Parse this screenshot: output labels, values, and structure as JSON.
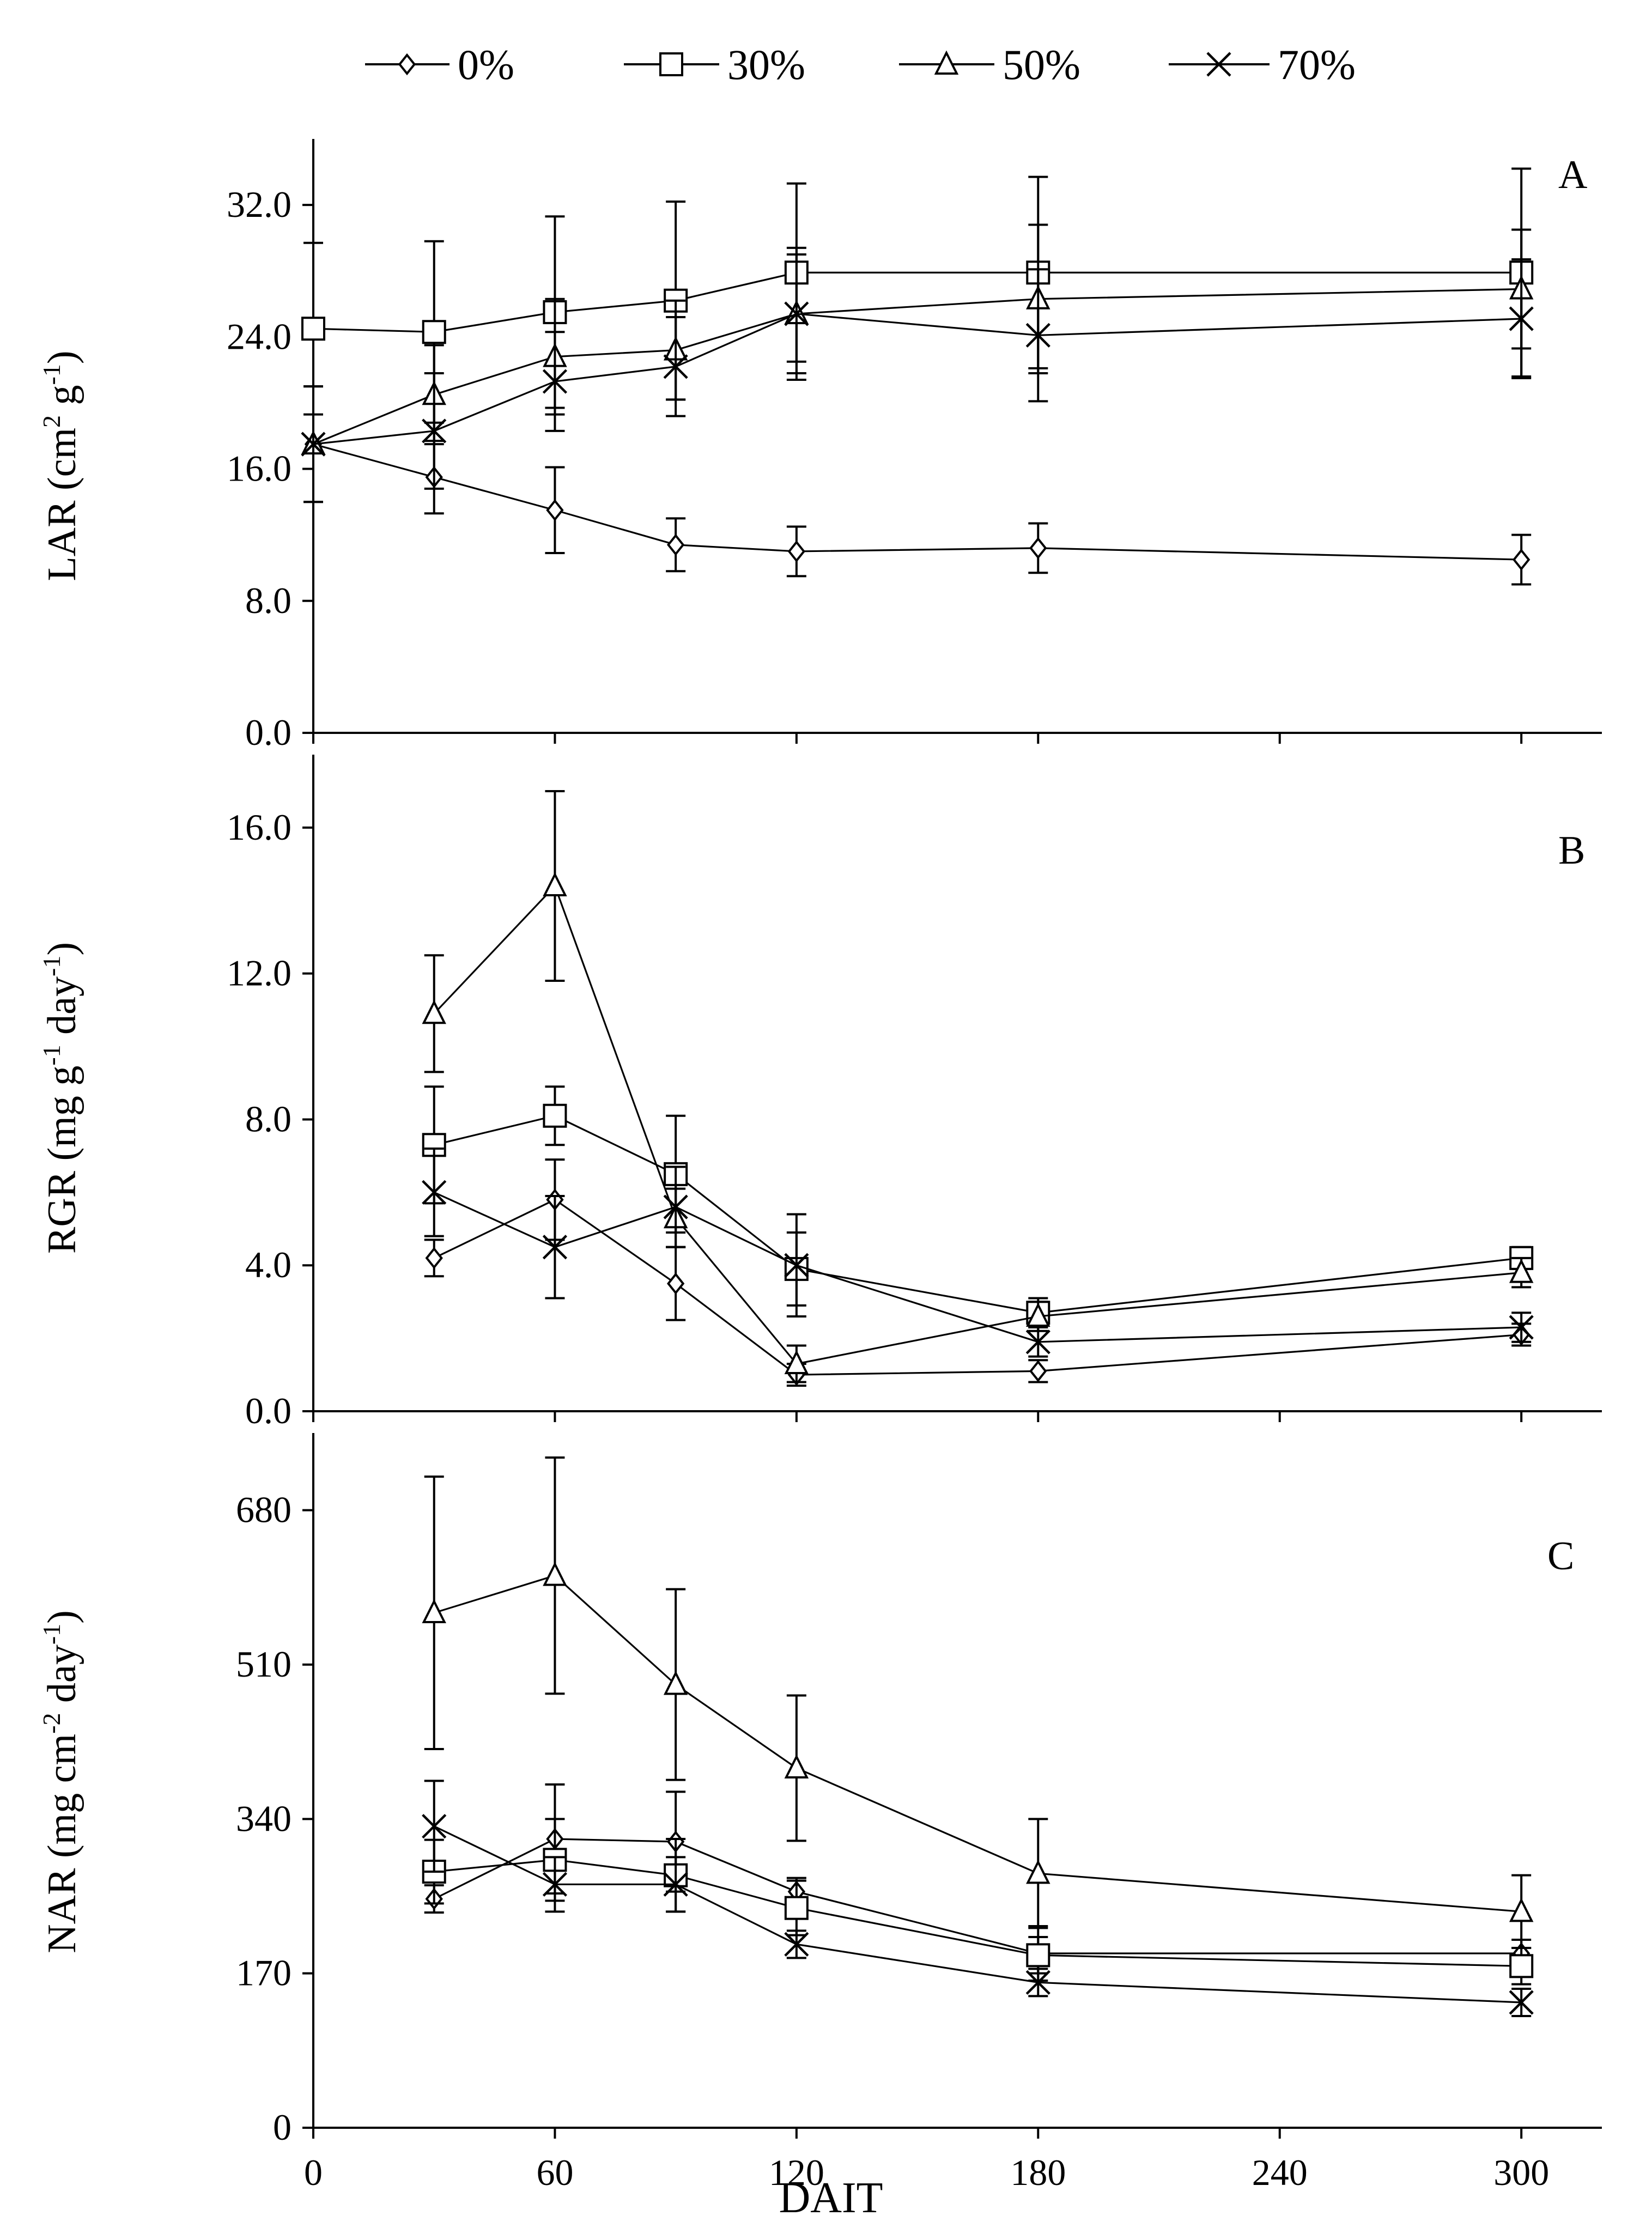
{
  "legend": {
    "entries": [
      {
        "label": "0%",
        "marker": "diamond"
      },
      {
        "label": "30%",
        "marker": "square"
      },
      {
        "label": "50%",
        "marker": "triangle"
      },
      {
        "label": "70%",
        "marker": "cross"
      }
    ],
    "placement": "top-center"
  },
  "chart_data": [
    {
      "type": "line",
      "panel": "A",
      "ylabel": "LAR (cm² g⁻¹)",
      "ylabel_parts": {
        "a": "LAR (cm",
        "b": "2",
        "c": " g",
        "d": "-1",
        "e": ")"
      },
      "ylim": [
        0,
        36
      ],
      "yticks": [
        0,
        8,
        16,
        24,
        32
      ],
      "ytick_labels": [
        "0.0",
        "8.0",
        "16.0",
        "24.0",
        "32.0"
      ],
      "x": [
        0,
        30,
        60,
        90,
        120,
        180,
        300
      ],
      "series": [
        {
          "name": "0%",
          "marker": "diamond",
          "values": [
            17.5,
            15.5,
            13.5,
            11.4,
            11.0,
            11.2,
            10.5
          ],
          "errors": [
            3.5,
            2.2,
            2.6,
            1.6,
            1.5,
            1.5,
            1.5
          ]
        },
        {
          "name": "30%",
          "marker": "square",
          "values": [
            24.5,
            24.3,
            25.5,
            26.2,
            27.9,
            27.9,
            27.9
          ],
          "errors": [
            5.2,
            5.5,
            5.8,
            6.0,
            5.4,
            5.8,
            6.3
          ]
        },
        {
          "name": "50%",
          "marker": "triangle",
          "values": [
            17.5,
            20.5,
            22.8,
            23.2,
            25.4,
            26.3,
            26.9
          ],
          "errors": [
            3.5,
            3.0,
            3.5,
            3.0,
            4.0,
            4.5,
            3.6
          ]
        },
        {
          "name": "70%",
          "marker": "cross",
          "values": [
            17.5,
            18.3,
            21.3,
            22.2,
            25.4,
            24.1,
            25.1
          ],
          "errors": [
            3.5,
            3.5,
            3.0,
            3.0,
            3.6,
            4.0,
            3.6
          ]
        }
      ]
    },
    {
      "type": "line",
      "panel": "B",
      "ylabel": "RGR (mg g⁻¹ day⁻¹)",
      "ylabel_parts": {
        "a": "RGR (mg g",
        "b": "-1",
        "c": " day",
        "d": "-1",
        "e": ")"
      },
      "ylim": [
        0,
        18
      ],
      "yticks": [
        0,
        4,
        8,
        12,
        16
      ],
      "ytick_labels": [
        "0.0",
        "4.0",
        "8.0",
        "12.0",
        "16.0"
      ],
      "x": [
        30,
        60,
        90,
        120,
        180,
        300
      ],
      "series": [
        {
          "name": "0%",
          "marker": "diamond",
          "values": [
            4.2,
            5.8,
            3.5,
            1.0,
            1.1,
            2.1
          ],
          "errors": [
            0.5,
            1.1,
            1.0,
            0.3,
            0.3,
            0.3
          ]
        },
        {
          "name": "30%",
          "marker": "square",
          "values": [
            7.3,
            8.1,
            6.5,
            3.9,
            2.7,
            4.2
          ],
          "errors": [
            1.6,
            0.8,
            1.6,
            1.0,
            0.4,
            0.3
          ]
        },
        {
          "name": "50%",
          "marker": "triangle",
          "values": [
            10.9,
            14.4,
            5.3,
            1.3,
            2.6,
            3.8
          ],
          "errors": [
            1.6,
            2.6,
            0.8,
            0.5,
            0.4,
            0.4
          ]
        },
        {
          "name": "70%",
          "marker": "cross",
          "values": [
            6.0,
            4.5,
            5.6,
            4.0,
            1.9,
            2.3
          ],
          "errors": [
            1.2,
            1.4,
            1.1,
            1.4,
            0.4,
            0.4
          ]
        }
      ]
    },
    {
      "type": "line",
      "panel": "C",
      "ylabel": "NAR (mg cm⁻² day⁻¹)",
      "ylabel_parts": {
        "a": "NAR (mg cm",
        "b": "-2",
        "c": " day",
        "d": "-1",
        "e": ")"
      },
      "ylim": [
        0,
        765
      ],
      "yticks": [
        0,
        170,
        340,
        510,
        680
      ],
      "ytick_labels": [
        "0",
        "170",
        "340",
        "510",
        "680"
      ],
      "x": [
        30,
        60,
        90,
        120,
        180,
        300
      ],
      "series": [
        {
          "name": "0%",
          "marker": "diamond",
          "values": [
            252,
            318,
            315,
            260,
            192,
            192
          ],
          "errors": [
            15,
            60,
            55,
            15,
            30,
            15
          ]
        },
        {
          "name": "30%",
          "marker": "square",
          "values": [
            282,
            295,
            278,
            242,
            190,
            178
          ],
          "errors": [
            35,
            45,
            40,
            30,
            20,
            20
          ]
        },
        {
          "name": "50%",
          "marker": "triangle",
          "values": [
            567,
            608,
            488,
            396,
            280,
            238
          ],
          "errors": [
            150,
            130,
            105,
            80,
            60,
            40
          ]
        },
        {
          "name": "70%",
          "marker": "cross",
          "values": [
            332,
            268,
            268,
            202,
            160,
            138
          ],
          "errors": [
            50,
            30,
            30,
            15,
            15,
            15
          ]
        }
      ]
    }
  ],
  "xaxis": {
    "label": "DAIT",
    "ticks": [
      0,
      60,
      120,
      180,
      240,
      300
    ],
    "tick_labels": [
      "0",
      "60",
      "120",
      "180",
      "240",
      "300"
    ],
    "xlim": [
      0,
      320
    ]
  }
}
